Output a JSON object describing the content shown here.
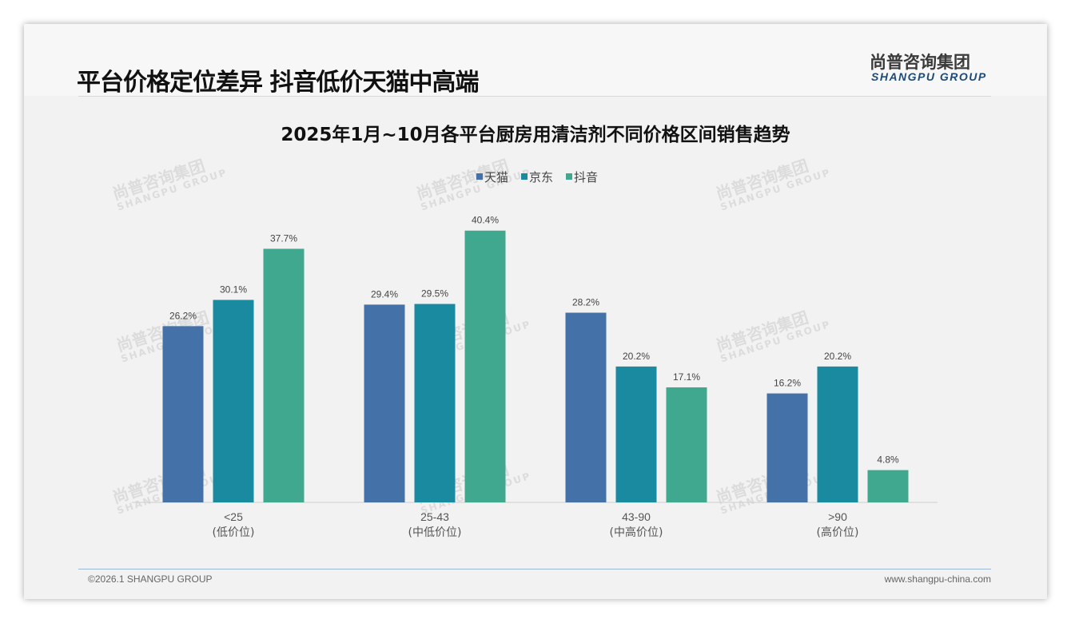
{
  "header": {
    "title": "平台价格定位差异 抖音低价天猫中高端",
    "logo_cn": "尚普咨询集团",
    "logo_en": "SHANGPU GROUP"
  },
  "footer": {
    "copyright": "©2026.1 SHANGPU GROUP",
    "website": "www.shangpu-china.com"
  },
  "watermark": {
    "cn": "尚普咨询集团",
    "en": "SHANGPU GROUP"
  },
  "chart_data": {
    "type": "bar",
    "title": "2025年1月~10月各平台厨房用清洁剂不同价格区间销售趋势",
    "categories": [
      "<25",
      "25-43",
      "43-90",
      ">90"
    ],
    "category_sublabels": [
      "(低价位)",
      "(中低价位)",
      "(中高价位)",
      "(高价位)"
    ],
    "series": [
      {
        "name": "天猫",
        "color": "#4472a8",
        "values": [
          26.2,
          29.4,
          28.2,
          16.2
        ]
      },
      {
        "name": "京东",
        "color": "#1a8aa0",
        "values": [
          30.1,
          29.5,
          20.2,
          20.2
        ]
      },
      {
        "name": "抖音",
        "color": "#41a890",
        "values": [
          37.7,
          40.4,
          17.1,
          4.8
        ]
      }
    ],
    "unit": "%",
    "ylim": [
      0,
      45
    ],
    "legend": "top-center",
    "grid": false
  }
}
